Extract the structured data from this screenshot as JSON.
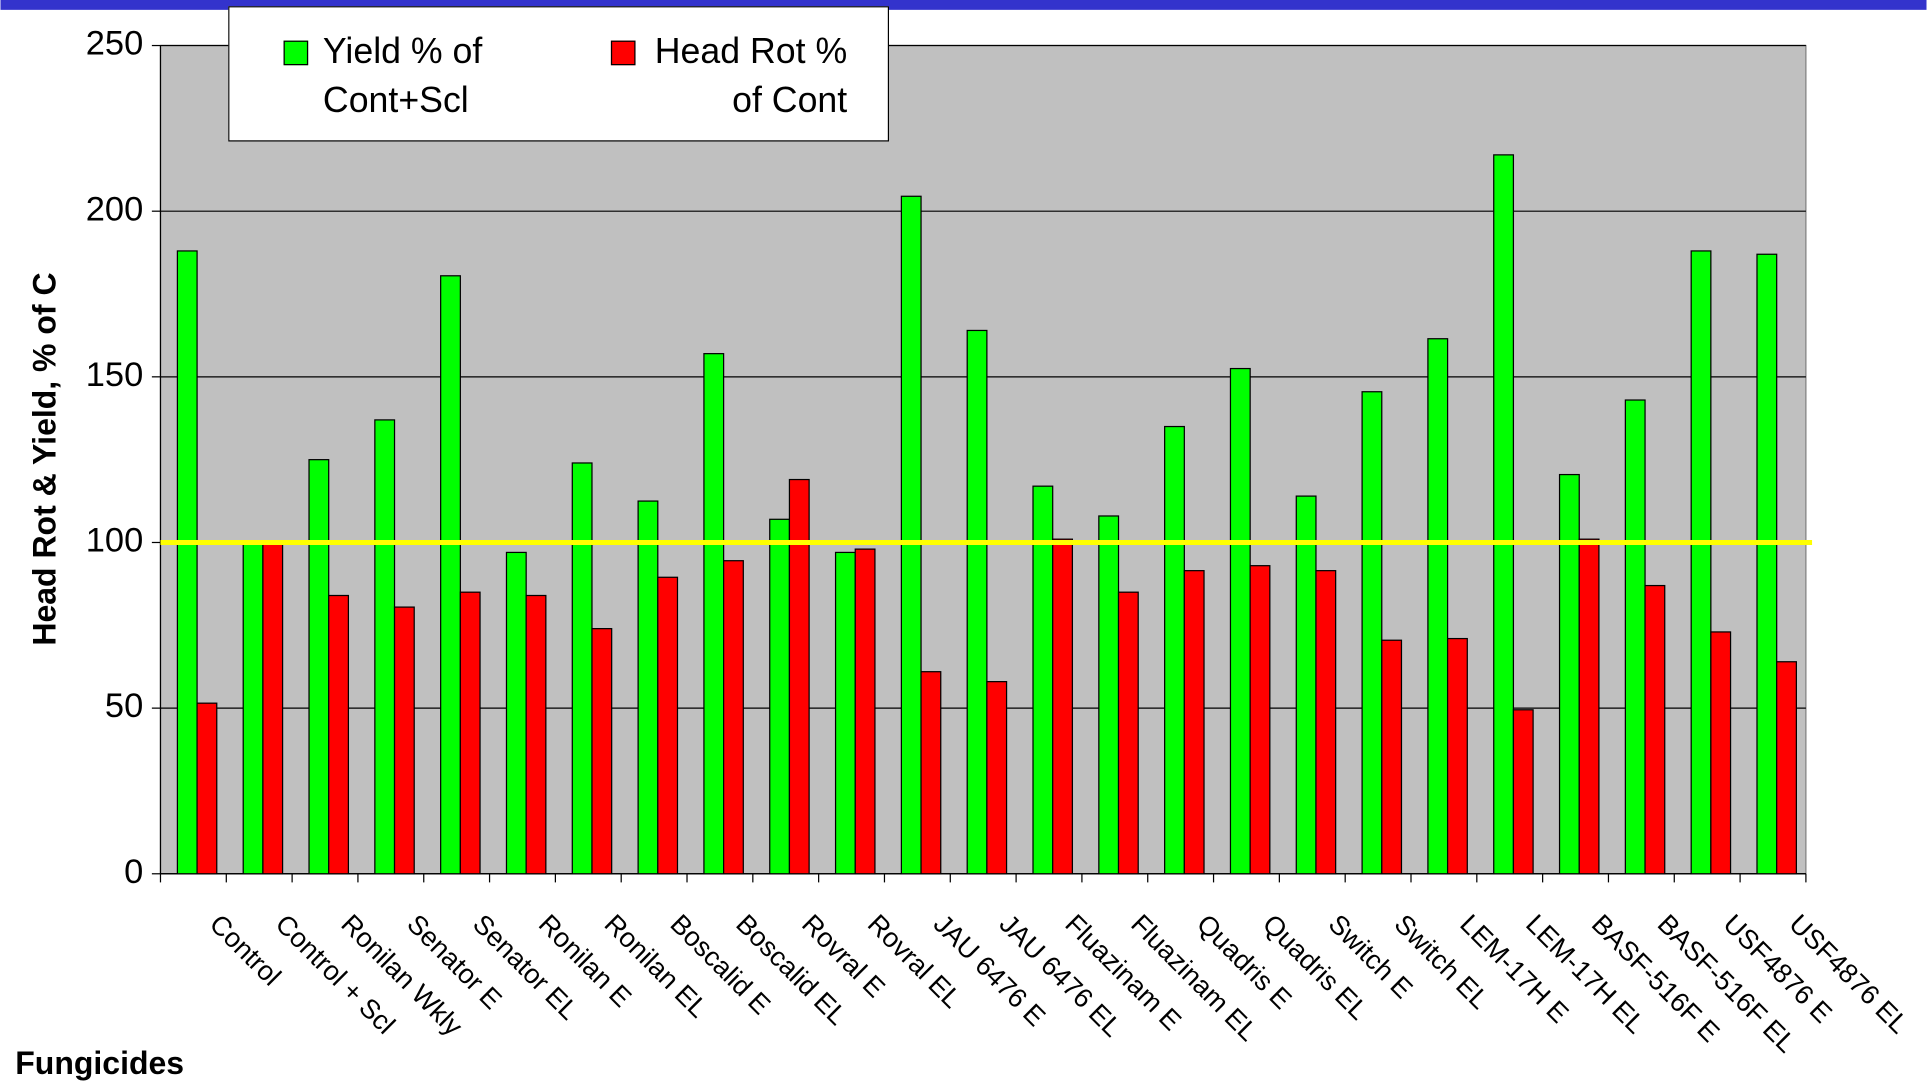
{
  "chart_data": {
    "type": "bar",
    "ylabel": "Head Rot & Yield, % of C",
    "xlabel": "Fungicides",
    "categories": [
      "Control",
      "Control + Scl",
      "Ronilan Wkly",
      "Senator E",
      "Senator EL",
      "Ronilan E",
      "Ronilan EL",
      "Boscalid E",
      "Boscalid EL",
      "Rovral E",
      "Rovral EL",
      "JAU 6476 E",
      "JAU 6476 EL",
      "Fluazinam E",
      "Fluazinam EL",
      "Quadris E",
      "Quadris EL",
      "Switch E",
      "Switch EL",
      "LEM-17H E",
      "LEM-17H EL",
      "BASF-516F E",
      "BASF-516F EL",
      "USF4876 E",
      "USF4876 EL"
    ],
    "series": [
      {
        "name": "Yield % of Cont+Scl",
        "color": "#00ff00",
        "values": [
          188,
          100,
          125,
          137,
          180.5,
          97,
          124,
          112.5,
          157,
          107,
          97,
          204.5,
          164,
          117,
          108,
          135,
          152.5,
          114,
          145.5,
          161.5,
          217,
          120.5,
          143,
          188,
          187
        ]
      },
      {
        "name": "Head Rot % of Cont",
        "color": "#ff0000",
        "values": [
          51.5,
          100,
          84,
          80.5,
          85,
          84,
          74,
          89.5,
          94.5,
          119,
          98,
          61,
          58,
          101,
          85,
          91.5,
          93,
          91.5,
          70.5,
          71,
          49.5,
          101,
          87,
          73,
          64
        ]
      }
    ],
    "reference_line": {
      "value": 100,
      "color": "#ffff00"
    },
    "ylim": [
      0,
      250
    ],
    "yticks": [
      0,
      50,
      100,
      150,
      200,
      250
    ],
    "grid": true,
    "legend": "top-left"
  }
}
